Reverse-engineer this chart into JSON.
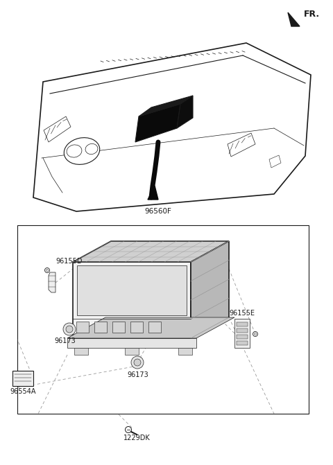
{
  "bg_color": "#ffffff",
  "line_color": "#1a1a1a",
  "gray_light": "#cccccc",
  "gray_med": "#aaaaaa",
  "gray_dark": "#666666",
  "black": "#111111",
  "fr_label": "FR.",
  "label_96560F": "96560F",
  "label_96155D": "96155D",
  "label_96155E": "96155E",
  "label_96173a": "96173",
  "label_96173b": "96173",
  "label_96554A": "96554A",
  "label_1229DK": "1229DK",
  "figw": 4.8,
  "figh": 6.71,
  "dpi": 100
}
